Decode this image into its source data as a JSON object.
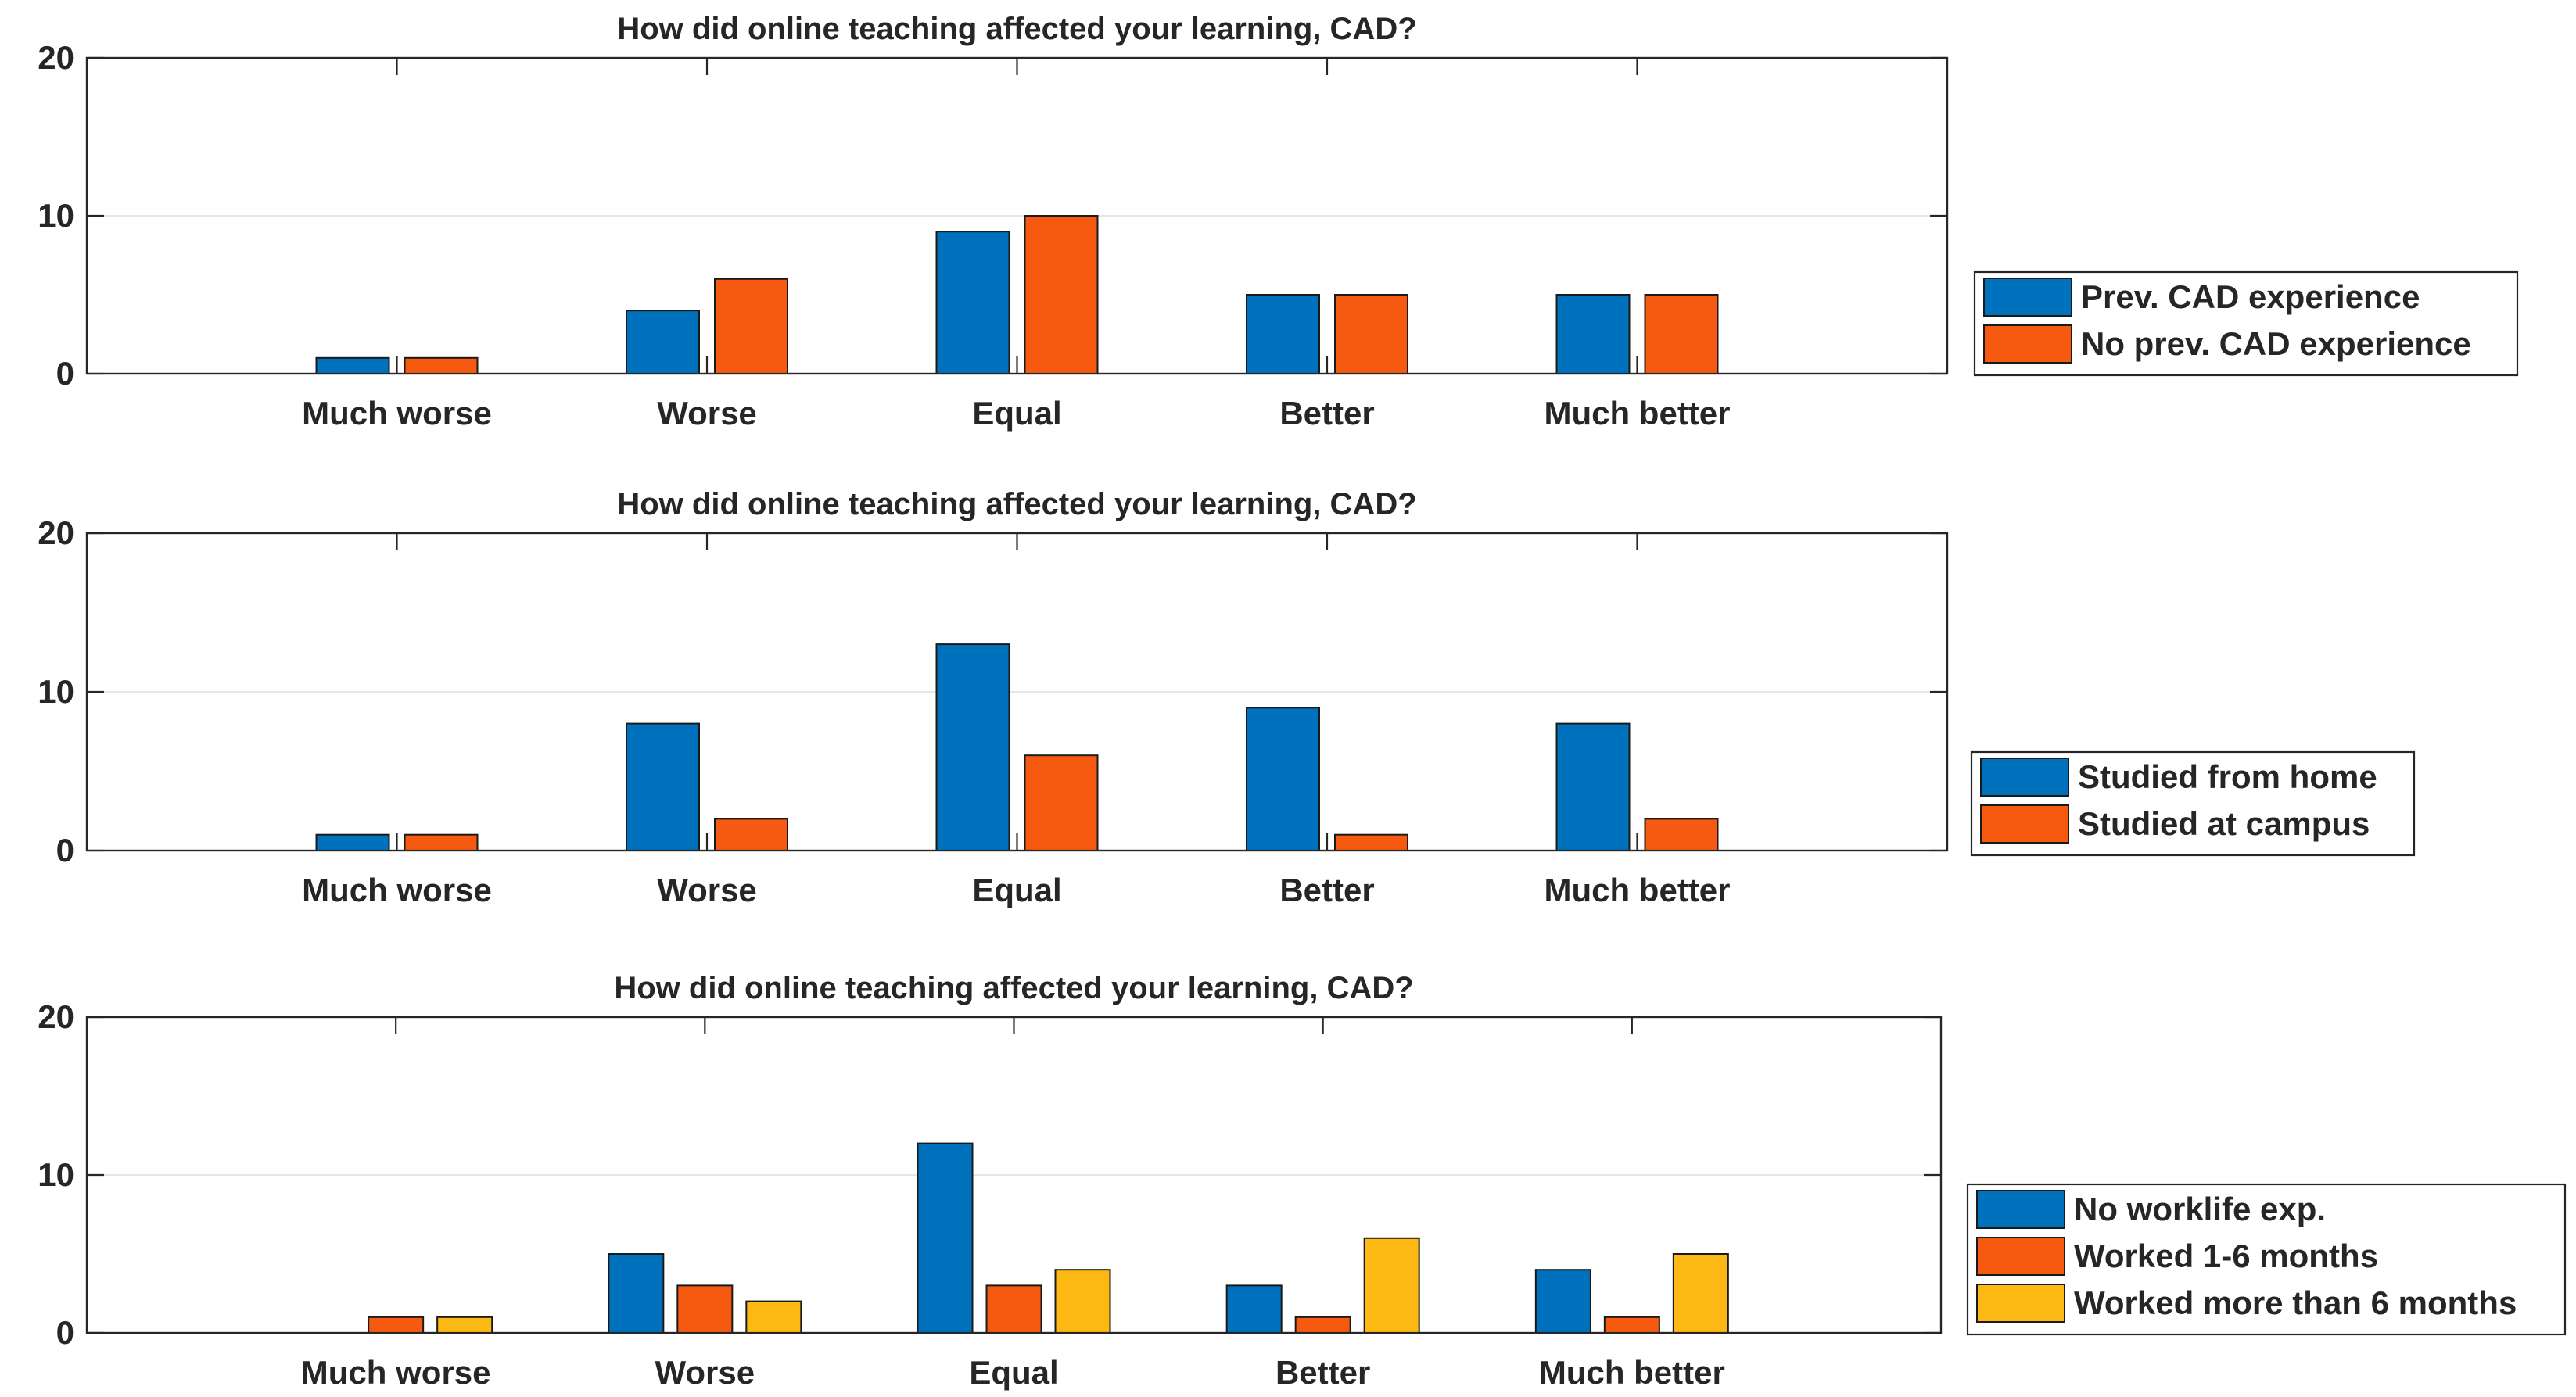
{
  "chart_data": [
    {
      "type": "bar",
      "title": "How did online teaching affected your learning, CAD?",
      "categories": [
        "Much worse",
        "Worse",
        "Equal",
        "Better",
        "Much better"
      ],
      "ylim": [
        0,
        20
      ],
      "yticks": [
        0,
        10,
        20
      ],
      "grid": "horizontal",
      "legend_position": "right",
      "series": [
        {
          "name": "Prev. CAD experience",
          "values": [
            1,
            4,
            9,
            5,
            5
          ],
          "color": "#0072BD"
        },
        {
          "name": "No prev. CAD experience",
          "values": [
            1,
            6,
            10,
            5,
            5
          ],
          "color": "#F55A10"
        }
      ]
    },
    {
      "type": "bar",
      "title": "How did online teaching affected your learning, CAD?",
      "categories": [
        "Much worse",
        "Worse",
        "Equal",
        "Better",
        "Much better"
      ],
      "ylim": [
        0,
        20
      ],
      "yticks": [
        0,
        10,
        20
      ],
      "grid": "horizontal",
      "legend_position": "right",
      "series": [
        {
          "name": "Studied from home",
          "values": [
            1,
            8,
            13,
            9,
            8
          ],
          "color": "#0072BD"
        },
        {
          "name": "Studied at campus",
          "values": [
            1,
            2,
            6,
            1,
            2
          ],
          "color": "#F55A10"
        }
      ]
    },
    {
      "type": "bar",
      "title": "How did online teaching affected your learning, CAD?",
      "categories": [
        "Much worse",
        "Worse",
        "Equal",
        "Better",
        "Much better"
      ],
      "ylim": [
        0,
        20
      ],
      "yticks": [
        0,
        10,
        20
      ],
      "grid": "horizontal",
      "legend_position": "right",
      "series": [
        {
          "name": "No worklife exp.",
          "values": [
            0,
            5,
            12,
            3,
            4
          ],
          "color": "#0072BD"
        },
        {
          "name": "Worked 1-6 months",
          "values": [
            1,
            3,
            3,
            1,
            1
          ],
          "color": "#F55A10"
        },
        {
          "name": "Worked more than 6 months",
          "values": [
            1,
            2,
            4,
            6,
            5
          ],
          "color": "#FDB813"
        }
      ]
    }
  ]
}
